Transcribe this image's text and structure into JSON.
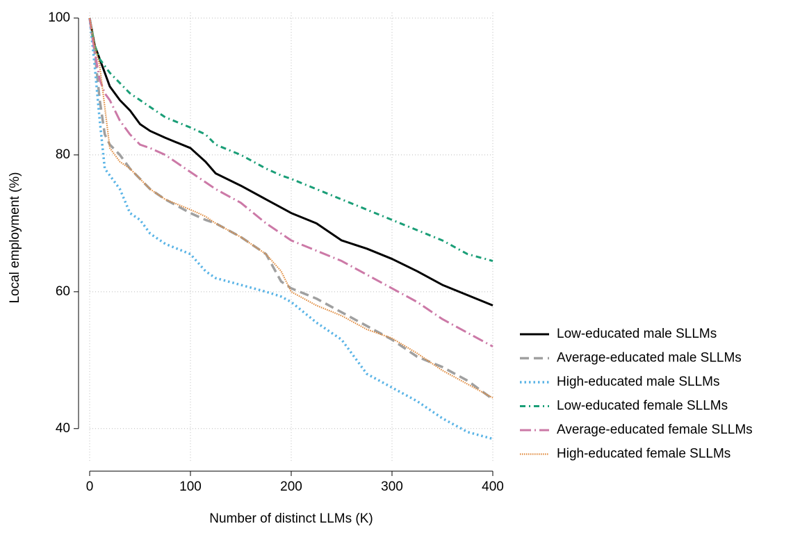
{
  "chart_data": {
    "type": "line",
    "x_label": "Number of distinct LLMs (K)",
    "y_label": "Local employment (%)",
    "x": [
      0,
      5,
      10,
      15,
      20,
      30,
      40,
      50,
      60,
      75,
      100,
      115,
      125,
      150,
      175,
      190,
      200,
      225,
      250,
      275,
      300,
      325,
      350,
      375,
      400
    ],
    "series": [
      {
        "name": "Low-educated male SLLMs",
        "color": "#000000",
        "dash": "solid",
        "values": [
          100,
          96,
          94,
          92,
          90,
          88,
          86.5,
          84.5,
          83.5,
          82.5,
          81,
          79,
          77.3,
          75.5,
          73.5,
          72.3,
          71.5,
          70,
          67.5,
          66.3,
          64.8,
          63,
          61,
          59.5,
          58
        ]
      },
      {
        "name": "Average-educated male SLLMs",
        "color": "#a0a0a0",
        "dash": "dashed",
        "values": [
          100,
          95,
          88,
          83,
          81.5,
          80,
          78,
          76.5,
          75,
          73.5,
          71.5,
          70.5,
          70,
          68,
          65.5,
          61.5,
          60.5,
          59,
          57,
          55,
          53,
          50.5,
          49,
          47,
          44.3
        ]
      },
      {
        "name": "High-educated male SLLMs",
        "color": "#5ab4e6",
        "dash": "dotted",
        "values": [
          100,
          93,
          85,
          78,
          77,
          75,
          71.5,
          70.5,
          68.5,
          67,
          65.5,
          63,
          62,
          61,
          60,
          59.3,
          58.5,
          55.5,
          53,
          48,
          46,
          44,
          41.5,
          39.5,
          38.5
        ]
      },
      {
        "name": "Low-educated female SLLMs",
        "color": "#1a9e77",
        "dash": "dashdot",
        "values": [
          100,
          96,
          94,
          93,
          92,
          90.5,
          89,
          88,
          87,
          85.5,
          84,
          83,
          81.5,
          80,
          78,
          77,
          76.5,
          75,
          73.5,
          72,
          70.5,
          69,
          67.5,
          65.5,
          64.5
        ]
      },
      {
        "name": "Average-educated female SLLMs",
        "color": "#cc79a7",
        "dash": "longdashdot",
        "values": [
          100,
          95,
          91,
          89,
          88,
          85,
          83,
          81.5,
          81,
          80,
          77.5,
          76,
          75,
          73,
          70,
          68.5,
          67.5,
          66,
          64.5,
          62.5,
          60.5,
          58.5,
          56,
          54,
          52
        ]
      },
      {
        "name": "High-educated female SLLMs",
        "color": "#e08a3c",
        "dash": "finedot",
        "values": [
          100,
          96,
          93,
          87,
          81,
          79,
          78,
          76.5,
          75,
          73.5,
          72,
          71,
          70,
          68,
          65.5,
          63,
          60,
          58,
          56.5,
          54.5,
          53.2,
          51,
          48.5,
          46.5,
          44.5
        ]
      }
    ],
    "xlim": [
      0,
      400
    ],
    "xticks": [
      0,
      100,
      200,
      300,
      400
    ],
    "ylim": [
      35,
      100.8
    ],
    "yticks": [
      40,
      60,
      80,
      100
    ],
    "grid": true,
    "legend": "right"
  }
}
